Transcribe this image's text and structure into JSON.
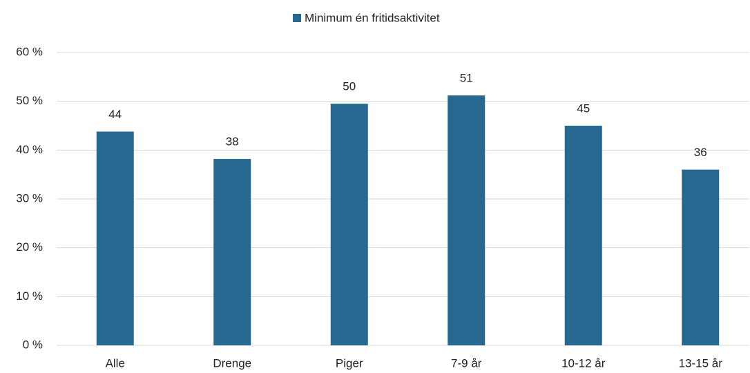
{
  "chart_data": {
    "type": "bar",
    "categories": [
      "Alle",
      "Drenge",
      "Piger",
      "7-9 år",
      "10-12 år",
      "13-15 år"
    ],
    "series": [
      {
        "name": "Minimum én fritidsaktivitet",
        "color": "#276891",
        "values": [
          43.8,
          38.2,
          49.5,
          51.2,
          45.0,
          36.0
        ],
        "value_labels": [
          "44",
          "38",
          "50",
          "51",
          "45",
          "36"
        ]
      }
    ],
    "ylim": [
      0,
      60
    ],
    "yticks": [
      {
        "value": 0,
        "label": "0 %"
      },
      {
        "value": 10,
        "label": "10 %"
      },
      {
        "value": 20,
        "label": "20 %"
      },
      {
        "value": 30,
        "label": "30 %"
      },
      {
        "value": 40,
        "label": "40 %"
      },
      {
        "value": 50,
        "label": "50 %"
      },
      {
        "value": 60,
        "label": "60 %"
      }
    ],
    "grid": true,
    "legend": "top"
  }
}
